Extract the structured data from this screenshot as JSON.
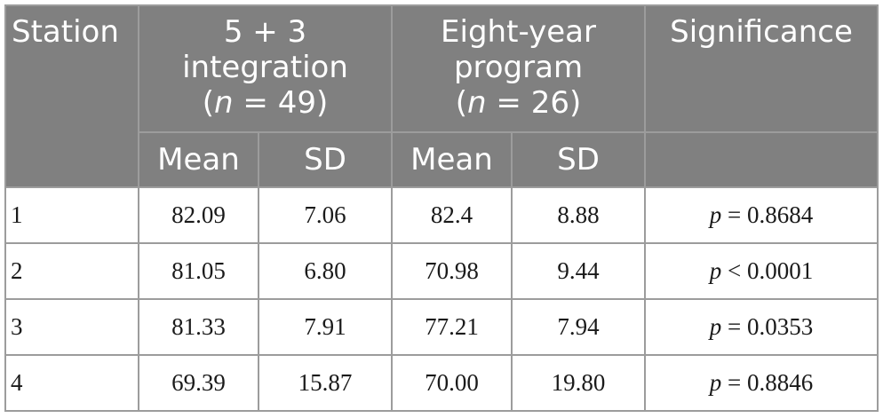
{
  "headers": {
    "station": "Station",
    "group1": {
      "line1": "5 + 3",
      "line2": "integration",
      "paren_open": "(",
      "n_symbol": "n",
      "n_value": " = 49)"
    },
    "group2": {
      "line1": "Eight-year",
      "line2": "program",
      "paren_open": "(",
      "n_symbol": "n",
      "n_value": " = 26)"
    },
    "significance": "Significance",
    "sub": {
      "mean1": "Mean",
      "sd1": "SD",
      "mean2": "Mean",
      "sd2": "SD"
    }
  },
  "rows": [
    {
      "station": "1",
      "mean1": "82.09",
      "sd1": "7.06",
      "mean2": "82.4",
      "sd2": "8.88",
      "p_symbol": "p",
      "p_value": " = 0.8684"
    },
    {
      "station": "2",
      "mean1": "81.05",
      "sd1": "6.80",
      "mean2": "70.98",
      "sd2": "9.44",
      "p_symbol": "p",
      "p_value": " < 0.0001"
    },
    {
      "station": "3",
      "mean1": "81.33",
      "sd1": "7.91",
      "mean2": "77.21",
      "sd2": "7.94",
      "p_symbol": "p",
      "p_value": " = 0.0353"
    },
    {
      "station": "4",
      "mean1": "69.39",
      "sd1": "15.87",
      "mean2": "70.00",
      "sd2": "19.80",
      "p_symbol": "p",
      "p_value": " = 0.8846"
    }
  ]
}
